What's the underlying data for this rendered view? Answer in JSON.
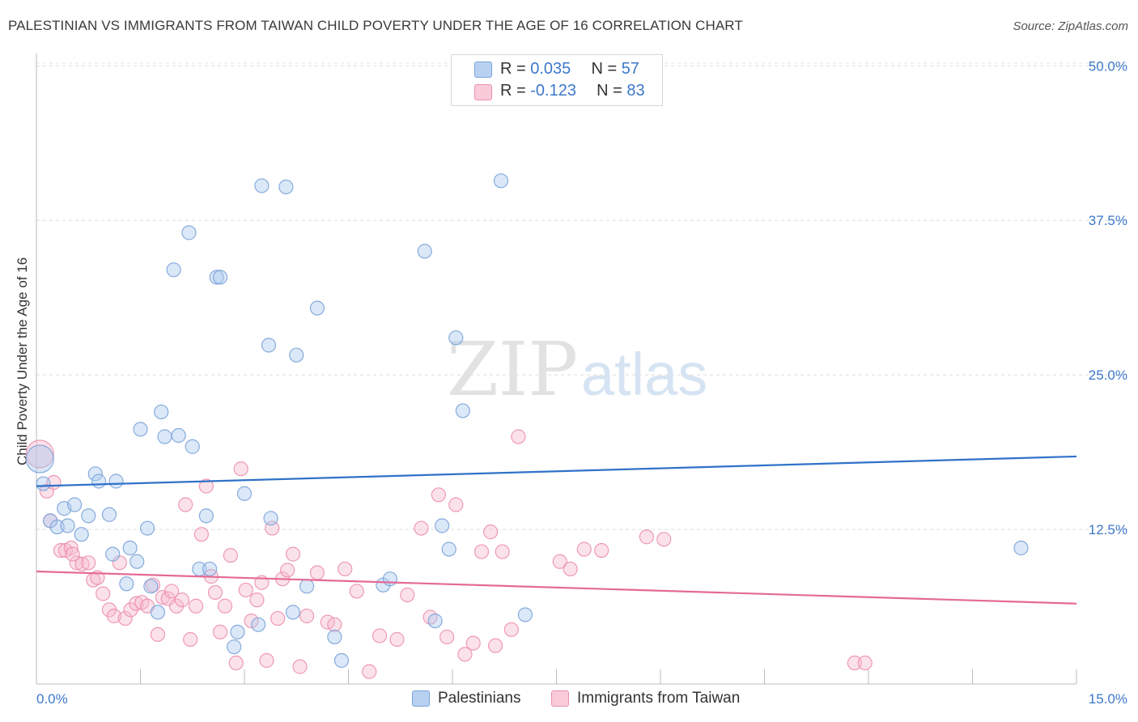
{
  "title": "PALESTINIAN VS IMMIGRANTS FROM TAIWAN CHILD POVERTY UNDER THE AGE OF 16 CORRELATION CHART",
  "source": "Source: ZipAtlas.com",
  "watermark": {
    "zip": "ZIP",
    "atlas": "atlas"
  },
  "stats": [
    {
      "r_label": "R =",
      "r_value": "0.035",
      "n_label": "N =",
      "n_value": "57"
    },
    {
      "r_label": "R =",
      "r_value": "-0.123",
      "n_label": "N =",
      "n_value": "83"
    }
  ],
  "legend": [
    {
      "label": "Palestinians"
    },
    {
      "label": "Immigrants from Taiwan"
    }
  ],
  "colors": {
    "blue_fill": "#a9c7ee",
    "blue_stroke": "#7ba3d8",
    "blue_line": "#2f72c9",
    "pink_fill": "#f6b9cc",
    "pink_stroke": "#ec8fae",
    "pink_line": "#e46a95",
    "tick_blue": "#3d78c9"
  },
  "chart_data": {
    "type": "scatter",
    "title": "PALESTINIAN VS IMMIGRANTS FROM TAIWAN CHILD POVERTY UNDER THE AGE OF 16 CORRELATION CHART",
    "xlabel": "",
    "ylabel": "Child Poverty Under the Age of 16",
    "xlim": [
      0,
      15
    ],
    "ylim": [
      0,
      51
    ],
    "x_tick_labels": [
      {
        "value": 0,
        "label": "0.0%"
      },
      {
        "value": 15,
        "label": "15.0%"
      }
    ],
    "y_tick_labels": [
      {
        "value": 12.5,
        "label": "12.5%"
      },
      {
        "value": 25,
        "label": "25.0%"
      },
      {
        "value": 37.5,
        "label": "37.5%"
      },
      {
        "value": 50,
        "label": "50.0%"
      }
    ],
    "grid": {
      "horizontal": true,
      "style": "dashed"
    },
    "series": [
      {
        "name": "Palestinians",
        "trend": [
          [
            0,
            16.0
          ],
          [
            15,
            18.4
          ]
        ],
        "points": [
          [
            0.05,
            18.2
          ],
          [
            0.1,
            16.2
          ],
          [
            0.2,
            13.2
          ],
          [
            0.3,
            12.7
          ],
          [
            0.4,
            14.2
          ],
          [
            0.45,
            12.8
          ],
          [
            0.55,
            14.5
          ],
          [
            0.65,
            12.1
          ],
          [
            0.75,
            13.6
          ],
          [
            0.85,
            17.0
          ],
          [
            0.9,
            16.4
          ],
          [
            1.05,
            13.7
          ],
          [
            1.1,
            10.5
          ],
          [
            1.15,
            16.4
          ],
          [
            1.3,
            8.1
          ],
          [
            1.35,
            11.0
          ],
          [
            1.45,
            9.9
          ],
          [
            1.5,
            20.6
          ],
          [
            1.6,
            12.6
          ],
          [
            1.65,
            7.9
          ],
          [
            1.75,
            5.8
          ],
          [
            1.8,
            22.0
          ],
          [
            1.85,
            20.0
          ],
          [
            1.98,
            33.5
          ],
          [
            2.05,
            20.1
          ],
          [
            2.2,
            36.5
          ],
          [
            2.25,
            19.2
          ],
          [
            2.35,
            9.3
          ],
          [
            2.45,
            13.6
          ],
          [
            2.5,
            9.3
          ],
          [
            2.6,
            32.9
          ],
          [
            2.65,
            32.9
          ],
          [
            2.85,
            3.0
          ],
          [
            2.9,
            4.2
          ],
          [
            3.0,
            15.4
          ],
          [
            3.2,
            4.8
          ],
          [
            3.25,
            40.3
          ],
          [
            3.35,
            27.4
          ],
          [
            3.38,
            13.4
          ],
          [
            3.6,
            40.2
          ],
          [
            3.7,
            5.8
          ],
          [
            3.75,
            26.6
          ],
          [
            3.9,
            7.9
          ],
          [
            4.05,
            30.4
          ],
          [
            4.3,
            3.8
          ],
          [
            4.4,
            1.9
          ],
          [
            5.0,
            8.0
          ],
          [
            5.1,
            8.5
          ],
          [
            5.6,
            35.0
          ],
          [
            5.75,
            5.1
          ],
          [
            5.85,
            12.8
          ],
          [
            5.95,
            10.9
          ],
          [
            6.05,
            28.0
          ],
          [
            6.15,
            22.1
          ],
          [
            6.7,
            40.7
          ],
          [
            7.05,
            5.6
          ],
          [
            14.2,
            11.0
          ]
        ],
        "sizes": {
          "0": "large"
        }
      },
      {
        "name": "Immigrants from Taiwan",
        "trend": [
          [
            0,
            9.1
          ],
          [
            15,
            6.5
          ]
        ],
        "points": [
          [
            0.05,
            18.6
          ],
          [
            0.15,
            15.6
          ],
          [
            0.2,
            13.2
          ],
          [
            0.25,
            16.3
          ],
          [
            0.35,
            10.8
          ],
          [
            0.42,
            10.8
          ],
          [
            0.5,
            11.0
          ],
          [
            0.58,
            9.8
          ],
          [
            0.66,
            9.7
          ],
          [
            0.75,
            9.8
          ],
          [
            0.82,
            8.4
          ],
          [
            0.88,
            8.6
          ],
          [
            0.96,
            7.3
          ],
          [
            1.05,
            6.0
          ],
          [
            1.12,
            5.5
          ],
          [
            1.2,
            9.8
          ],
          [
            1.28,
            5.3
          ],
          [
            1.36,
            6.0
          ],
          [
            1.44,
            6.5
          ],
          [
            1.52,
            6.6
          ],
          [
            1.6,
            6.3
          ],
          [
            1.68,
            8.0
          ],
          [
            1.75,
            4.0
          ],
          [
            1.82,
            7.0
          ],
          [
            1.9,
            6.9
          ],
          [
            1.95,
            7.5
          ],
          [
            2.02,
            6.3
          ],
          [
            2.1,
            6.8
          ],
          [
            2.15,
            14.5
          ],
          [
            2.22,
            3.6
          ],
          [
            2.3,
            6.3
          ],
          [
            2.38,
            12.1
          ],
          [
            2.45,
            16.0
          ],
          [
            2.52,
            8.7
          ],
          [
            2.58,
            7.4
          ],
          [
            2.65,
            4.2
          ],
          [
            2.72,
            6.3
          ],
          [
            2.8,
            10.4
          ],
          [
            2.88,
            1.7
          ],
          [
            2.95,
            17.4
          ],
          [
            3.02,
            7.6
          ],
          [
            3.1,
            5.1
          ],
          [
            3.18,
            6.8
          ],
          [
            3.25,
            8.2
          ],
          [
            3.32,
            1.9
          ],
          [
            3.4,
            12.6
          ],
          [
            3.48,
            5.3
          ],
          [
            3.55,
            8.5
          ],
          [
            3.62,
            9.2
          ],
          [
            3.7,
            10.5
          ],
          [
            3.8,
            1.4
          ],
          [
            3.9,
            5.5
          ],
          [
            4.05,
            9.0
          ],
          [
            4.2,
            5.0
          ],
          [
            4.3,
            4.8
          ],
          [
            4.45,
            9.3
          ],
          [
            4.62,
            7.5
          ],
          [
            4.8,
            1.0
          ],
          [
            4.95,
            3.9
          ],
          [
            5.2,
            3.6
          ],
          [
            5.35,
            7.2
          ],
          [
            5.55,
            12.6
          ],
          [
            5.68,
            5.4
          ],
          [
            5.8,
            15.3
          ],
          [
            5.92,
            3.8
          ],
          [
            6.05,
            14.5
          ],
          [
            6.18,
            2.4
          ],
          [
            6.3,
            3.3
          ],
          [
            6.42,
            10.7
          ],
          [
            6.55,
            12.3
          ],
          [
            6.62,
            3.1
          ],
          [
            6.72,
            10.7
          ],
          [
            6.85,
            4.4
          ],
          [
            6.95,
            20.0
          ],
          [
            7.55,
            9.9
          ],
          [
            7.7,
            9.3
          ],
          [
            7.9,
            10.9
          ],
          [
            8.15,
            10.8
          ],
          [
            8.8,
            11.9
          ],
          [
            9.05,
            11.7
          ],
          [
            11.8,
            1.7
          ],
          [
            11.95,
            1.7
          ],
          [
            0.52,
            10.5
          ]
        ],
        "sizes": {
          "0": "large"
        }
      }
    ]
  }
}
